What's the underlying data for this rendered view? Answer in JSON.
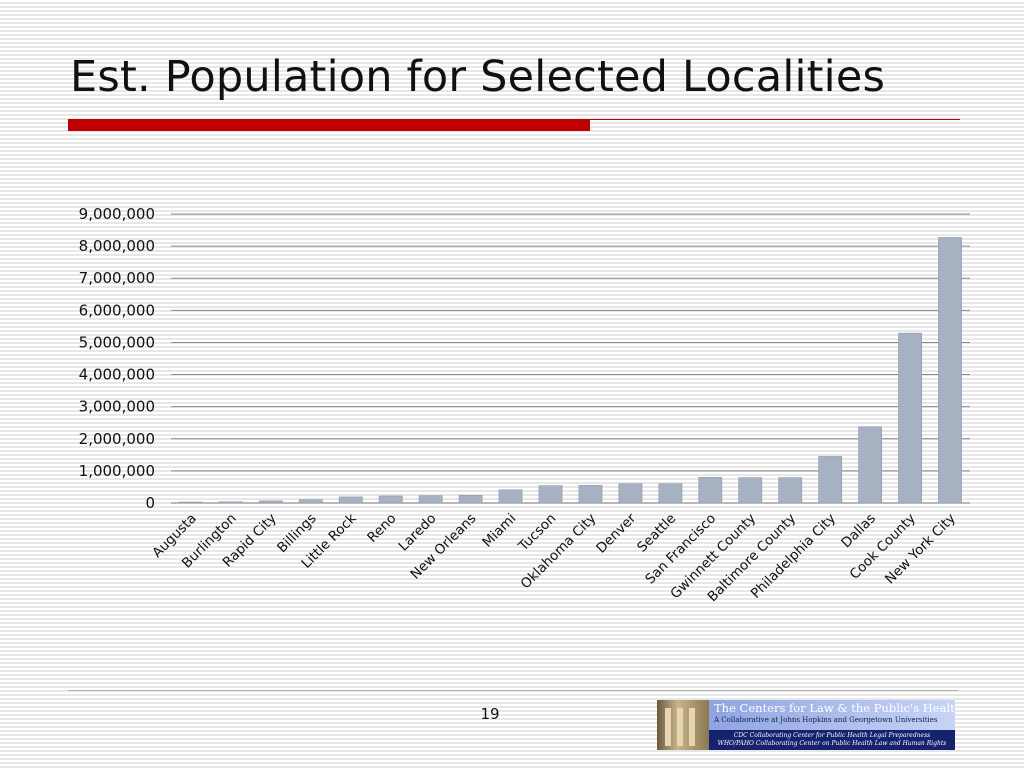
{
  "slide": {
    "title": "Est. Population for Selected Localities",
    "page_number": "19",
    "colors": {
      "accent": "#c00000",
      "bar": "#a6b2c2",
      "bar_edge": "#8e9aaa",
      "gridline": "#8a8a8a"
    }
  },
  "logo": {
    "title": "The Centers for Law & the Public's Health:",
    "subtitle": "A Collaborative at Johns Hopkins and Georgetown Universities",
    "line1": "CDC Collaborating Center for Public Health Legal Preparedness",
    "line2": "WHO/PAHO Collaborating Center on Public Health Law and Human Rights",
    "icon": "pillar-icon"
  },
  "chart_data": {
    "type": "bar",
    "title": "",
    "xlabel": "",
    "ylabel": "",
    "ylim": [
      0,
      9000000
    ],
    "yticks": [
      0,
      1000000,
      2000000,
      3000000,
      4000000,
      5000000,
      6000000,
      7000000,
      8000000,
      9000000
    ],
    "ytick_labels": [
      "0",
      "1,000,000",
      "2,000,000",
      "3,000,000",
      "4,000,000",
      "5,000,000",
      "6,000,000",
      "7,000,000",
      "8,000,000",
      "9,000,000"
    ],
    "grid": true,
    "legend": "none",
    "categories": [
      "Augusta",
      "Burlington",
      "Rapid City",
      "Billings",
      "Little Rock",
      "Reno",
      "Laredo",
      "New Orleans",
      "Miami",
      "Tucson",
      "Oklahoma City",
      "Denver",
      "Seattle",
      "San Francisco",
      "Gwinnett County",
      "Baltimore County",
      "Philadelphia City",
      "Dallas",
      "Cook County",
      "New York City"
    ],
    "values": [
      19000,
      39000,
      66000,
      105000,
      190000,
      220000,
      230000,
      240000,
      410000,
      540000,
      550000,
      600000,
      600000,
      800000,
      790000,
      790000,
      1450000,
      2370000,
      5290000,
      8270000
    ]
  }
}
